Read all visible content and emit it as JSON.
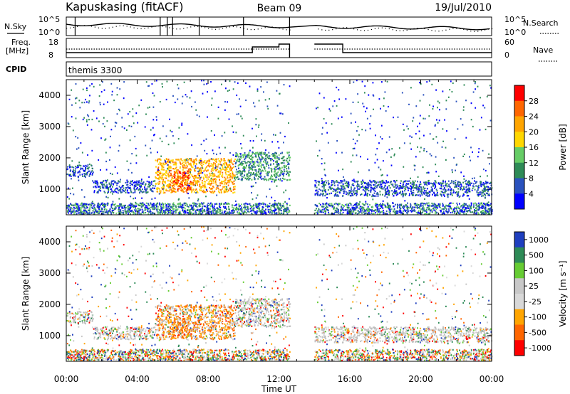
{
  "header": {
    "radar": "Kapuskasing (fitACF)",
    "beam": "Beam 09",
    "date": "19/Jul/2010"
  },
  "status_panels": {
    "nsky_label": "N.Sky",
    "nsky_ticks": [
      "10^5",
      "10^0"
    ],
    "nsearch_label": "N.Search",
    "nsearch_ticks": [
      "10^5",
      "10^0"
    ],
    "freq_label_line1": "Freq.",
    "freq_label_line2": "[MHz]",
    "freq_ticks": [
      "18",
      "8"
    ],
    "nave_label": "Nave",
    "nave_ticks": [
      "60",
      "0"
    ],
    "cpid_label": "CPID",
    "cpid_value": "themis 3300"
  },
  "colors": {
    "power_scale": [
      "#0000ff",
      "#2a52be",
      "#2e8b57",
      "#66cd66",
      "#ffd700",
      "#ffa500",
      "#ff6600",
      "#ff0000"
    ],
    "velocity_scale": [
      "#ff0000",
      "#ff6600",
      "#ffa500",
      "#d8d8d8",
      "#c8c8c8",
      "#66cc33",
      "#2e8b57",
      "#1f3fbf"
    ],
    "ground_scatter": "#bfbfbf"
  },
  "chart_data": [
    {
      "type": "heatmap",
      "name": "power",
      "xlabel": "Time UT",
      "ylabel": "Slant Range [km]",
      "ylim": [
        180,
        4500
      ],
      "xlim": [
        0,
        24
      ],
      "y_ticks": [
        "1000",
        "2000",
        "3000",
        "4000"
      ],
      "colorbar_label": "Power [dB]",
      "colorbar_ticks": [
        "4",
        "8",
        "12",
        "16",
        "20",
        "24",
        "28"
      ],
      "colorbar_range": [
        0,
        30
      ],
      "data_gap_hours": [
        12.6,
        14.0
      ],
      "regions": [
        {
          "t": [
            0.0,
            1.5
          ],
          "r": [
            1400,
            1800
          ],
          "level": 6
        },
        {
          "t": [
            1.5,
            5.0
          ],
          "r": [
            900,
            1300
          ],
          "level": 5
        },
        {
          "t": [
            5.0,
            9.5
          ],
          "r": [
            900,
            2000
          ],
          "level": 20
        },
        {
          "t": [
            6.0,
            7.0
          ],
          "r": [
            1000,
            1600
          ],
          "level": 26
        },
        {
          "t": [
            9.5,
            12.6
          ],
          "r": [
            1300,
            2200
          ],
          "level": 10
        },
        {
          "t": [
            14.0,
            24.0
          ],
          "r": [
            800,
            1300
          ],
          "level": 6
        }
      ]
    },
    {
      "type": "heatmap",
      "name": "velocity",
      "xlabel": "Time UT",
      "ylabel": "Slant Range [km]",
      "ylim": [
        180,
        4500
      ],
      "xlim": [
        0,
        24
      ],
      "x_ticks": [
        "00:00",
        "04:00",
        "08:00",
        "12:00",
        "16:00",
        "20:00",
        "00:00"
      ],
      "y_ticks": [
        "1000",
        "2000",
        "3000",
        "4000"
      ],
      "colorbar_label": "Velocity [m s⁻¹]",
      "colorbar_ticks": [
        "1000",
        "500",
        "100",
        "25",
        "-25",
        "-100",
        "-500",
        "-1000"
      ],
      "data_gap_hours": [
        12.6,
        14.0
      ]
    }
  ]
}
